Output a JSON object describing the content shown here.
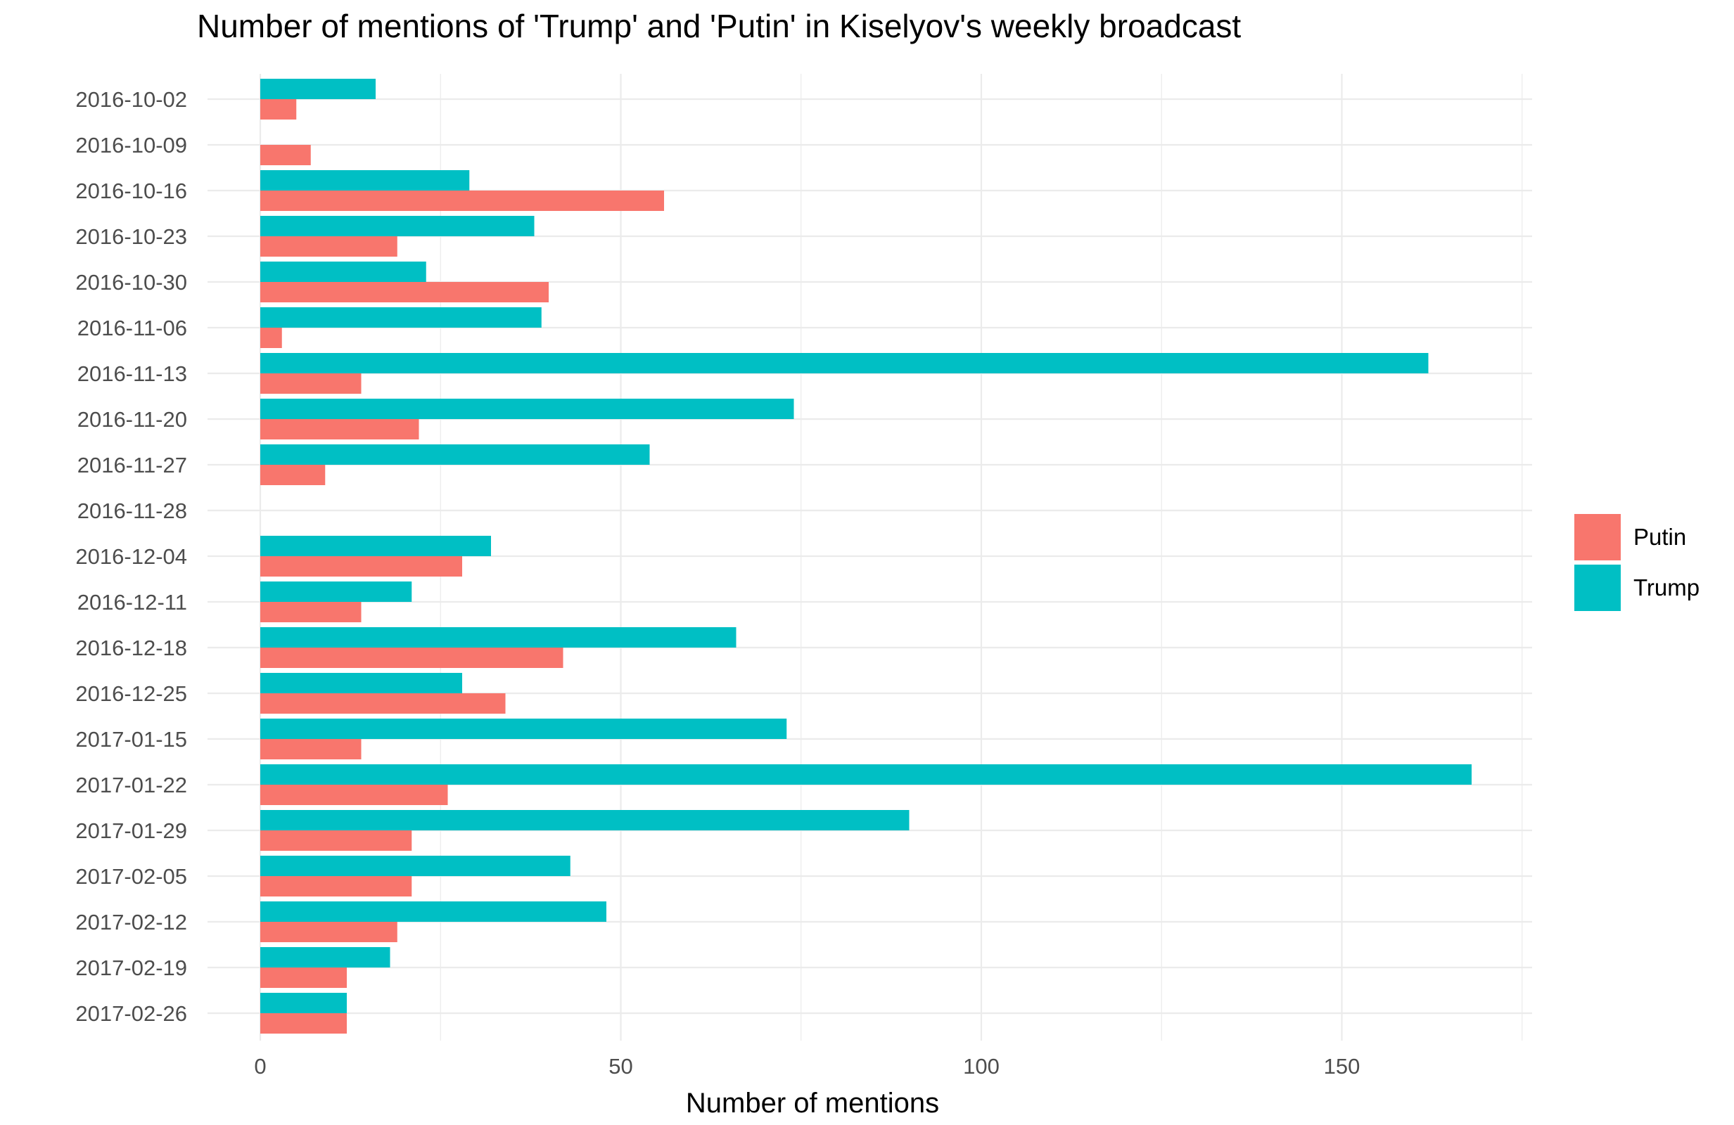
{
  "chart_data": {
    "type": "bar",
    "orientation": "horizontal",
    "title": "Number of mentions of 'Trump' and 'Putin' in Kiselyov's weekly broadcast",
    "xlabel": "Number of mentions",
    "ylabel": "",
    "xlim": [
      0,
      177
    ],
    "x_ticks": [
      0,
      50,
      100,
      150
    ],
    "grid": true,
    "legend_position": "right",
    "categories": [
      "2016-10-02",
      "2016-10-09",
      "2016-10-16",
      "2016-10-23",
      "2016-10-30",
      "2016-11-06",
      "2016-11-13",
      "2016-11-20",
      "2016-11-27",
      "2016-11-28",
      "2016-12-04",
      "2016-12-11",
      "2016-12-18",
      "2016-12-25",
      "2017-01-15",
      "2017-01-22",
      "2017-01-29",
      "2017-02-05",
      "2017-02-12",
      "2017-02-19",
      "2017-02-26"
    ],
    "series": [
      {
        "name": "Putin",
        "color": "#F8766D",
        "values": [
          5,
          7,
          56,
          19,
          40,
          3,
          14,
          22,
          9,
          0,
          28,
          14,
          42,
          34,
          14,
          26,
          21,
          21,
          19,
          12,
          12
        ]
      },
      {
        "name": "Trump",
        "color": "#00BFC4",
        "values": [
          16,
          0,
          29,
          38,
          23,
          39,
          162,
          74,
          54,
          0,
          32,
          21,
          66,
          28,
          73,
          168,
          90,
          43,
          48,
          18,
          12
        ]
      }
    ]
  }
}
